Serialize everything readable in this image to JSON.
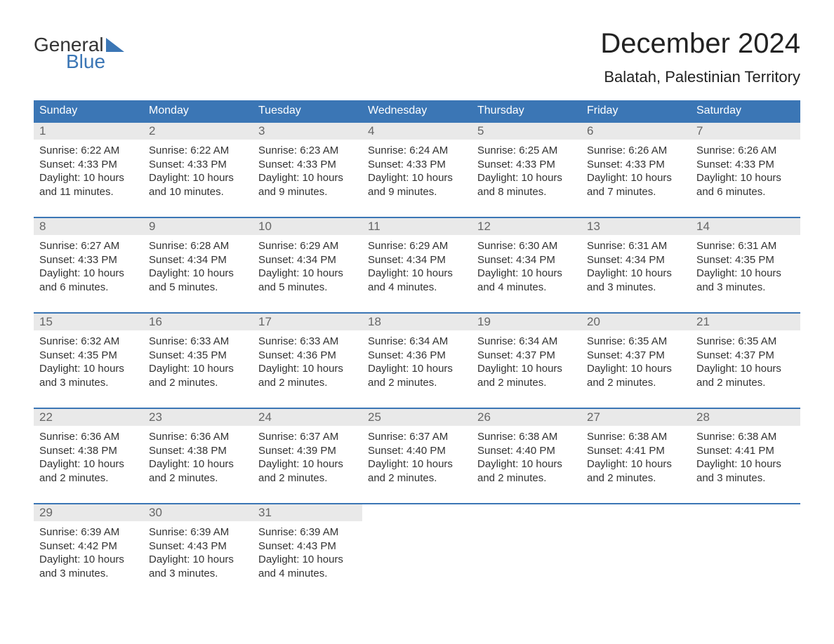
{
  "logo": {
    "word1": "General",
    "word2": "Blue"
  },
  "title": "December 2024",
  "location": "Balatah, Palestinian Territory",
  "colors": {
    "header_bg": "#3b76b5",
    "week_border": "#3b76b5",
    "daynum_bg": "#e9e9e9",
    "page_bg": "#ffffff",
    "text": "#333333"
  },
  "typography": {
    "title_fontsize": 40,
    "location_fontsize": 22,
    "weekday_fontsize": 16,
    "daynum_fontsize": 17,
    "body_fontsize": 15
  },
  "weekdays": [
    "Sunday",
    "Monday",
    "Tuesday",
    "Wednesday",
    "Thursday",
    "Friday",
    "Saturday"
  ],
  "weeks": [
    [
      {
        "n": "1",
        "sr": "Sunrise: 6:22 AM",
        "ss": "Sunset: 4:33 PM",
        "d1": "Daylight: 10 hours",
        "d2": "and 11 minutes."
      },
      {
        "n": "2",
        "sr": "Sunrise: 6:22 AM",
        "ss": "Sunset: 4:33 PM",
        "d1": "Daylight: 10 hours",
        "d2": "and 10 minutes."
      },
      {
        "n": "3",
        "sr": "Sunrise: 6:23 AM",
        "ss": "Sunset: 4:33 PM",
        "d1": "Daylight: 10 hours",
        "d2": "and 9 minutes."
      },
      {
        "n": "4",
        "sr": "Sunrise: 6:24 AM",
        "ss": "Sunset: 4:33 PM",
        "d1": "Daylight: 10 hours",
        "d2": "and 9 minutes."
      },
      {
        "n": "5",
        "sr": "Sunrise: 6:25 AM",
        "ss": "Sunset: 4:33 PM",
        "d1": "Daylight: 10 hours",
        "d2": "and 8 minutes."
      },
      {
        "n": "6",
        "sr": "Sunrise: 6:26 AM",
        "ss": "Sunset: 4:33 PM",
        "d1": "Daylight: 10 hours",
        "d2": "and 7 minutes."
      },
      {
        "n": "7",
        "sr": "Sunrise: 6:26 AM",
        "ss": "Sunset: 4:33 PM",
        "d1": "Daylight: 10 hours",
        "d2": "and 6 minutes."
      }
    ],
    [
      {
        "n": "8",
        "sr": "Sunrise: 6:27 AM",
        "ss": "Sunset: 4:33 PM",
        "d1": "Daylight: 10 hours",
        "d2": "and 6 minutes."
      },
      {
        "n": "9",
        "sr": "Sunrise: 6:28 AM",
        "ss": "Sunset: 4:34 PM",
        "d1": "Daylight: 10 hours",
        "d2": "and 5 minutes."
      },
      {
        "n": "10",
        "sr": "Sunrise: 6:29 AM",
        "ss": "Sunset: 4:34 PM",
        "d1": "Daylight: 10 hours",
        "d2": "and 5 minutes."
      },
      {
        "n": "11",
        "sr": "Sunrise: 6:29 AM",
        "ss": "Sunset: 4:34 PM",
        "d1": "Daylight: 10 hours",
        "d2": "and 4 minutes."
      },
      {
        "n": "12",
        "sr": "Sunrise: 6:30 AM",
        "ss": "Sunset: 4:34 PM",
        "d1": "Daylight: 10 hours",
        "d2": "and 4 minutes."
      },
      {
        "n": "13",
        "sr": "Sunrise: 6:31 AM",
        "ss": "Sunset: 4:34 PM",
        "d1": "Daylight: 10 hours",
        "d2": "and 3 minutes."
      },
      {
        "n": "14",
        "sr": "Sunrise: 6:31 AM",
        "ss": "Sunset: 4:35 PM",
        "d1": "Daylight: 10 hours",
        "d2": "and 3 minutes."
      }
    ],
    [
      {
        "n": "15",
        "sr": "Sunrise: 6:32 AM",
        "ss": "Sunset: 4:35 PM",
        "d1": "Daylight: 10 hours",
        "d2": "and 3 minutes."
      },
      {
        "n": "16",
        "sr": "Sunrise: 6:33 AM",
        "ss": "Sunset: 4:35 PM",
        "d1": "Daylight: 10 hours",
        "d2": "and 2 minutes."
      },
      {
        "n": "17",
        "sr": "Sunrise: 6:33 AM",
        "ss": "Sunset: 4:36 PM",
        "d1": "Daylight: 10 hours",
        "d2": "and 2 minutes."
      },
      {
        "n": "18",
        "sr": "Sunrise: 6:34 AM",
        "ss": "Sunset: 4:36 PM",
        "d1": "Daylight: 10 hours",
        "d2": "and 2 minutes."
      },
      {
        "n": "19",
        "sr": "Sunrise: 6:34 AM",
        "ss": "Sunset: 4:37 PM",
        "d1": "Daylight: 10 hours",
        "d2": "and 2 minutes."
      },
      {
        "n": "20",
        "sr": "Sunrise: 6:35 AM",
        "ss": "Sunset: 4:37 PM",
        "d1": "Daylight: 10 hours",
        "d2": "and 2 minutes."
      },
      {
        "n": "21",
        "sr": "Sunrise: 6:35 AM",
        "ss": "Sunset: 4:37 PM",
        "d1": "Daylight: 10 hours",
        "d2": "and 2 minutes."
      }
    ],
    [
      {
        "n": "22",
        "sr": "Sunrise: 6:36 AM",
        "ss": "Sunset: 4:38 PM",
        "d1": "Daylight: 10 hours",
        "d2": "and 2 minutes."
      },
      {
        "n": "23",
        "sr": "Sunrise: 6:36 AM",
        "ss": "Sunset: 4:38 PM",
        "d1": "Daylight: 10 hours",
        "d2": "and 2 minutes."
      },
      {
        "n": "24",
        "sr": "Sunrise: 6:37 AM",
        "ss": "Sunset: 4:39 PM",
        "d1": "Daylight: 10 hours",
        "d2": "and 2 minutes."
      },
      {
        "n": "25",
        "sr": "Sunrise: 6:37 AM",
        "ss": "Sunset: 4:40 PM",
        "d1": "Daylight: 10 hours",
        "d2": "and 2 minutes."
      },
      {
        "n": "26",
        "sr": "Sunrise: 6:38 AM",
        "ss": "Sunset: 4:40 PM",
        "d1": "Daylight: 10 hours",
        "d2": "and 2 minutes."
      },
      {
        "n": "27",
        "sr": "Sunrise: 6:38 AM",
        "ss": "Sunset: 4:41 PM",
        "d1": "Daylight: 10 hours",
        "d2": "and 2 minutes."
      },
      {
        "n": "28",
        "sr": "Sunrise: 6:38 AM",
        "ss": "Sunset: 4:41 PM",
        "d1": "Daylight: 10 hours",
        "d2": "and 3 minutes."
      }
    ],
    [
      {
        "n": "29",
        "sr": "Sunrise: 6:39 AM",
        "ss": "Sunset: 4:42 PM",
        "d1": "Daylight: 10 hours",
        "d2": "and 3 minutes."
      },
      {
        "n": "30",
        "sr": "Sunrise: 6:39 AM",
        "ss": "Sunset: 4:43 PM",
        "d1": "Daylight: 10 hours",
        "d2": "and 3 minutes."
      },
      {
        "n": "31",
        "sr": "Sunrise: 6:39 AM",
        "ss": "Sunset: 4:43 PM",
        "d1": "Daylight: 10 hours",
        "d2": "and 4 minutes."
      },
      {
        "empty": true
      },
      {
        "empty": true
      },
      {
        "empty": true
      },
      {
        "empty": true
      }
    ]
  ]
}
